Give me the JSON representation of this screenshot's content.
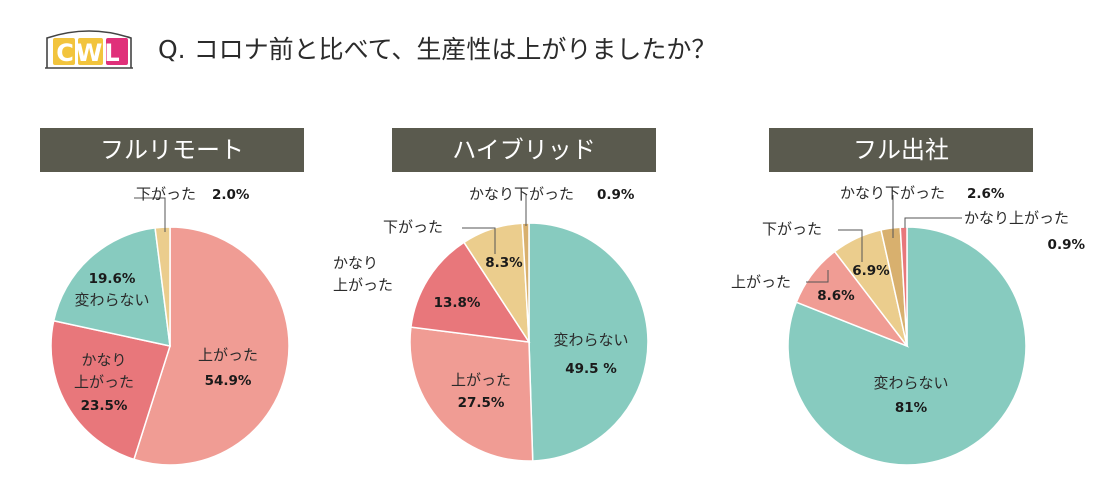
{
  "header": {
    "logo_text": "CWL",
    "title": "Q. コロナ前と比べて、生産性は上がりましたか？"
  },
  "colors": {
    "up": "#f09c94",
    "same": "#87cbbf",
    "up_much": "#e8777b",
    "down": "#ebcd8d",
    "down_much": "#d8b06e",
    "header_bg": "#5a5a4e"
  },
  "chart_data": [
    {
      "type": "pie",
      "title": "フルリモート",
      "slices": [
        {
          "label": "上がった",
          "value": 54.9,
          "value_label": "54.9%",
          "color_key": "up"
        },
        {
          "label": "かなり上がった",
          "value": 23.5,
          "value_label": "23.5%",
          "color_key": "up_much"
        },
        {
          "label": "変わらない",
          "value": 19.6,
          "value_label": "19.6%",
          "color_key": "same"
        },
        {
          "label": "下がった",
          "value": 2.0,
          "value_label": "2.0%",
          "color_key": "down"
        }
      ]
    },
    {
      "type": "pie",
      "title": "ハイブリッド",
      "slices": [
        {
          "label": "変わらない",
          "value": 49.5,
          "value_label": "49.5 %",
          "color_key": "same"
        },
        {
          "label": "上がった",
          "value": 27.5,
          "value_label": "27.5%",
          "color_key": "up"
        },
        {
          "label": "かなり上がった",
          "value": 13.8,
          "value_label": "13.8%",
          "color_key": "up_much"
        },
        {
          "label": "下がった",
          "value": 8.3,
          "value_label": "8.3%",
          "color_key": "down"
        },
        {
          "label": "かなり下がった",
          "value": 0.9,
          "value_label": "0.9%",
          "color_key": "down_much"
        }
      ]
    },
    {
      "type": "pie",
      "title": "フル出社",
      "slices": [
        {
          "label": "変わらない",
          "value": 81,
          "value_label": "81%",
          "color_key": "same"
        },
        {
          "label": "上がった",
          "value": 8.6,
          "value_label": "8.6%",
          "color_key": "up"
        },
        {
          "label": "下がった",
          "value": 6.9,
          "value_label": "6.9%",
          "color_key": "down"
        },
        {
          "label": "かなり下がった",
          "value": 2.6,
          "value_label": "2.6%",
          "color_key": "down_much"
        },
        {
          "label": "かなり上がった",
          "value": 0.9,
          "value_label": "0.9%",
          "color_key": "up_much"
        }
      ]
    }
  ],
  "labels": {
    "full_remote": {
      "up": "上がった",
      "up_pct": "54.9%",
      "up_much_1": "かなり",
      "up_much_2": "上がった",
      "up_much_pct": "23.5%",
      "same": "変わらない",
      "same_pct": "19.6%",
      "down": "下がった",
      "down_pct": "2.0%"
    },
    "hybrid": {
      "same": "変わらない",
      "same_pct": "49.5 %",
      "up": "上がった",
      "up_pct": "27.5%",
      "up_much_1": "かなり",
      "up_much_2": "上がった",
      "up_much_pct": "13.8%",
      "down": "下がった",
      "down_pct": "8.3%",
      "down_much": "かなり下がった",
      "down_much_pct": "0.9%"
    },
    "office": {
      "same": "変わらない",
      "same_pct": "81%",
      "up": "上がった",
      "up_pct": "8.6%",
      "down": "下がった",
      "down_pct": "6.9%",
      "down_much": "かなり下がった",
      "down_much_pct": "2.6%",
      "up_much": "かなり上がった",
      "up_much_pct": "0.9%"
    }
  }
}
